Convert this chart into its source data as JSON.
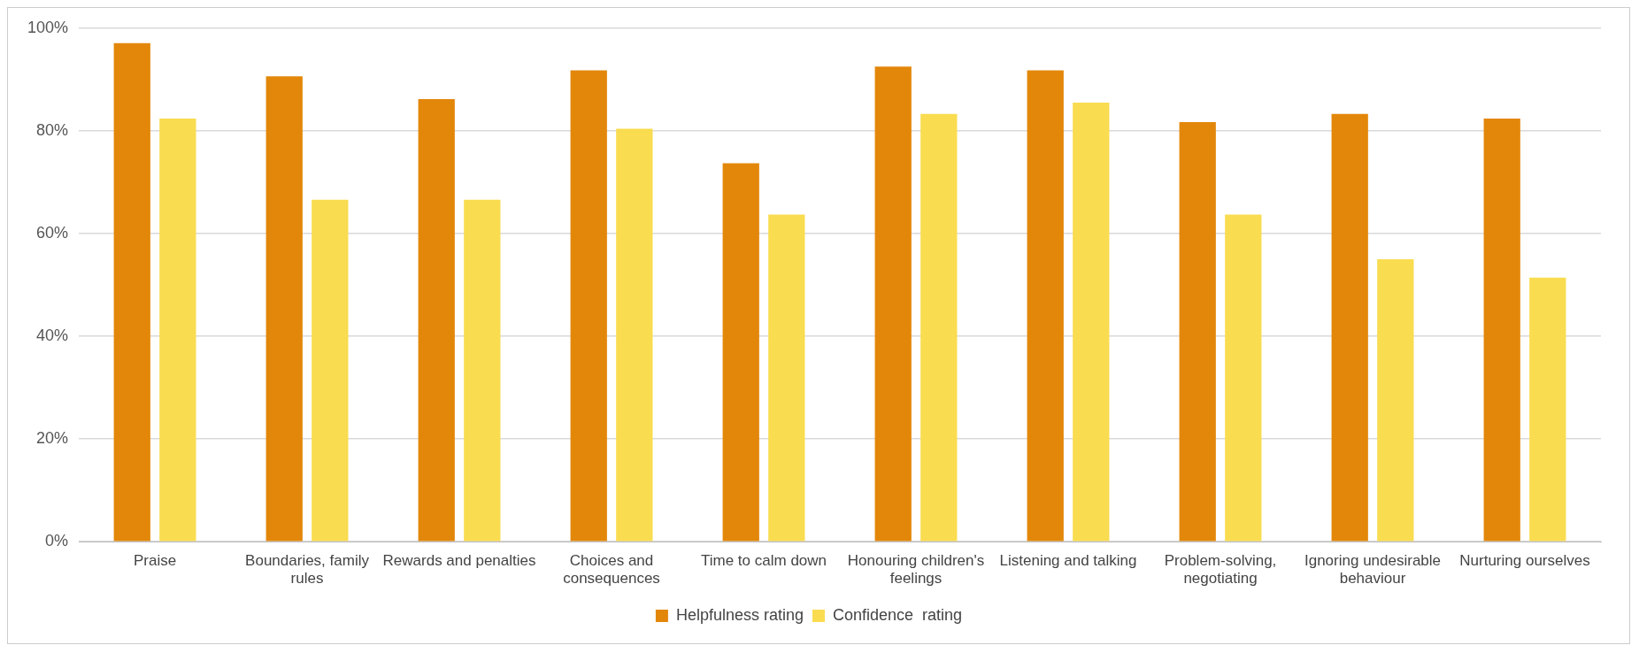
{
  "chart_data": {
    "type": "bar",
    "categories": [
      "Praise",
      "Boundaries, family rules",
      "Rewards and penalties",
      "Choices and consequences",
      "Time to calm down",
      "Honouring children's feelings",
      "Listening and talking",
      "Problem-solving, negotiating",
      "Ignoring undesirable behaviour",
      "Nurturing ourselves"
    ],
    "series": [
      {
        "name": "Helpfulness rating",
        "color": "#e3870a",
        "values": [
          97.1,
          90.6,
          86.2,
          91.8,
          73.7,
          92.5,
          91.8,
          81.7,
          83.3,
          82.4
        ]
      },
      {
        "name": "Confidence  rating",
        "color": "#f9dc50",
        "values": [
          82.4,
          66.6,
          66.6,
          80.4,
          63.7,
          83.3,
          85.5,
          63.7,
          55.0,
          51.4
        ]
      }
    ],
    "ylim": [
      0,
      100
    ],
    "yticks": [
      {
        "value": 0,
        "label": "0%"
      },
      {
        "value": 20,
        "label": "20%"
      },
      {
        "value": 40,
        "label": "40%"
      },
      {
        "value": 60,
        "label": "60%"
      },
      {
        "value": 80,
        "label": "80%"
      },
      {
        "value": 100,
        "label": "100%"
      }
    ],
    "grid": "y",
    "legend": "bottom"
  }
}
